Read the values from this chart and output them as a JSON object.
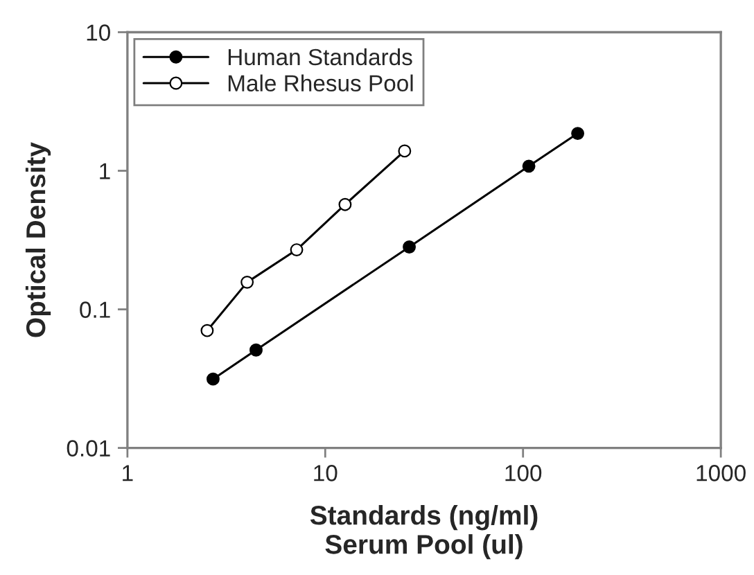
{
  "chart_data": {
    "type": "line",
    "xlabel": "Standards (ng/ml)\nSerum Pool (ul)",
    "ylabel": "Optical Density",
    "log": "xy",
    "xlim": [
      1,
      1000
    ],
    "ylim": [
      0.01,
      10
    ],
    "xticks": [
      1,
      10,
      100,
      1000
    ],
    "yticks": [
      0.01,
      0.1,
      1,
      10
    ],
    "grid": false,
    "legend": "top left",
    "marker": "circle",
    "line_style": "solid",
    "series": [
      {
        "name": "Human Standards",
        "color": "#000000",
        "x": [
          2.71,
          4.47,
          26.6,
          107,
          189
        ],
        "values": [
          0.0314,
          0.0509,
          0.282,
          1.08,
          1.86
        ]
      },
      {
        "name": "Male Rhesus Pool",
        "color": "#000000",
        "x": [
          2.53,
          4.03,
          7.17,
          12.6,
          25.2
        ],
        "values": [
          0.0703,
          0.157,
          0.269,
          0.571,
          1.39
        ]
      }
    ]
  }
}
